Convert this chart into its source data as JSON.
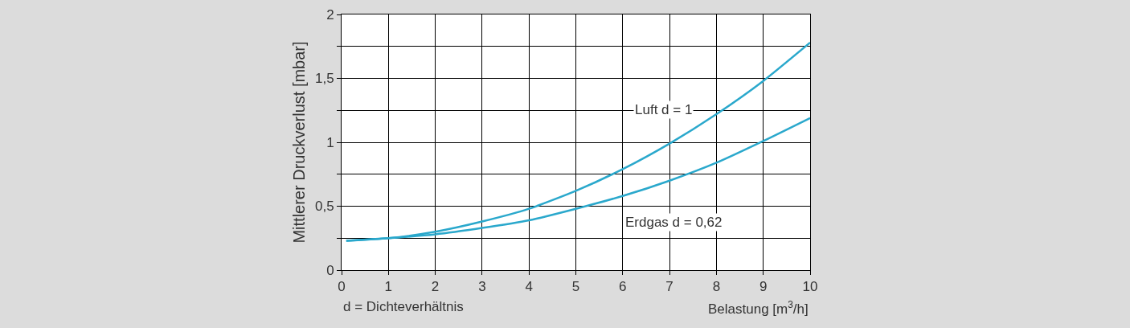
{
  "chart_data": {
    "type": "line",
    "xlabel": "Belastung [m$^{3}$/h]",
    "ylabel": "Mittlerer Druckverlust [mbar]",
    "annotations": [
      "d = Dichteverhältnis"
    ],
    "x": [
      0.1,
      1,
      2,
      3,
      4,
      5,
      6,
      7,
      8,
      9,
      10
    ],
    "series": [
      {
        "name": "Luft d = 1",
        "color": "#2aa8cc",
        "values": [
          0.23,
          0.25,
          0.3,
          0.38,
          0.48,
          0.62,
          0.79,
          0.99,
          1.22,
          1.48,
          1.78
        ]
      },
      {
        "name": "Erdgas d = 0,62",
        "color": "#2aa8cc",
        "values": [
          0.23,
          0.25,
          0.28,
          0.33,
          0.39,
          0.48,
          0.58,
          0.7,
          0.84,
          1.01,
          1.19
        ]
      }
    ],
    "xlim": [
      0,
      10
    ],
    "xticks": [
      0,
      1,
      2,
      3,
      4,
      5,
      6,
      7,
      8,
      9,
      10
    ],
    "ylim": [
      0,
      2
    ],
    "yticks": [
      0,
      {
        "value": 0.25,
        "label": null
      },
      {
        "value": 0.5,
        "label": "0,5"
      },
      {
        "value": 0.75,
        "label": null
      },
      1,
      {
        "value": 1.25,
        "label": null
      },
      {
        "value": 1.5,
        "label": "1,5"
      },
      {
        "value": 1.75,
        "label": null
      },
      2
    ],
    "grid": true,
    "legend": false,
    "marker": "none",
    "line_style": "solid"
  }
}
